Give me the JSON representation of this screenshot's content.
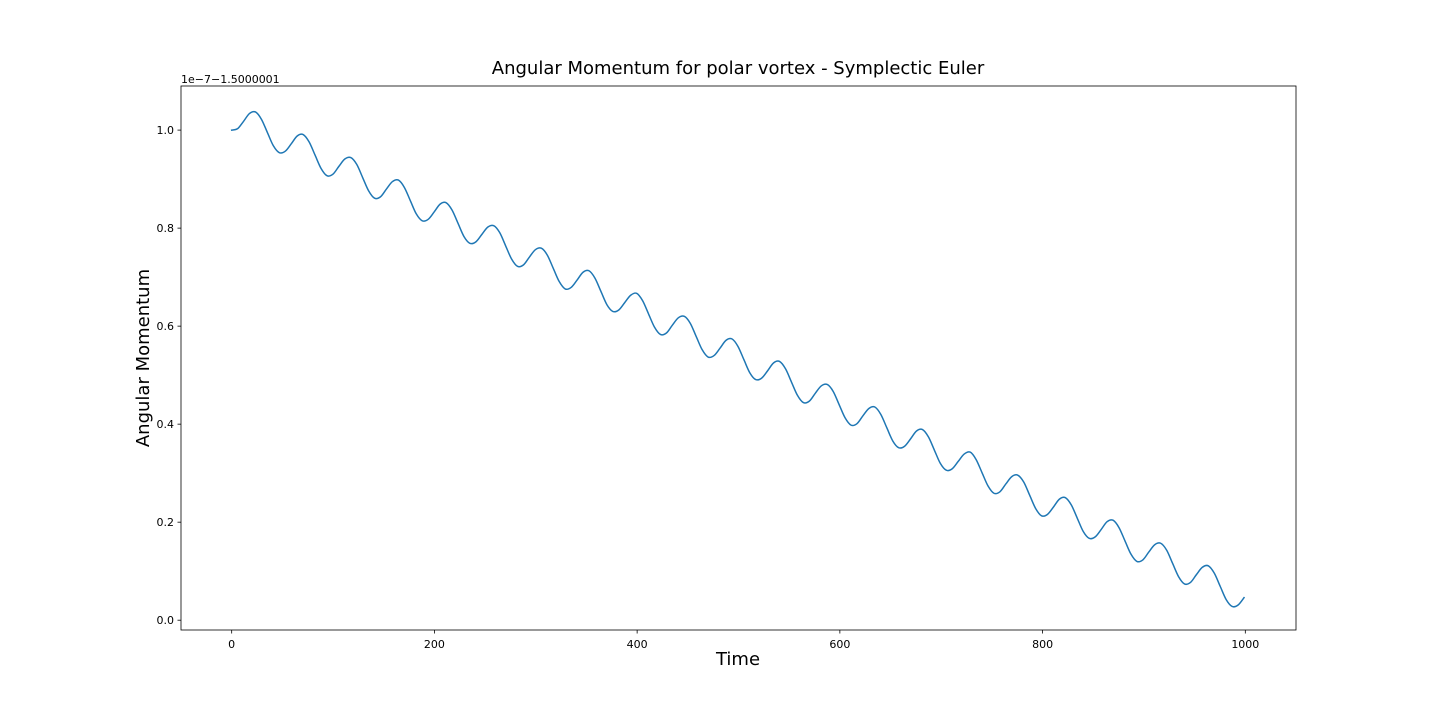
{
  "chart_data": {
    "type": "line",
    "title": "Angular Momentum for polar vortex - Symplectic Euler",
    "x_label": "Time",
    "y_label": "Angular Momentum",
    "y_offset_text": "1e−7−1.5000001",
    "xlim": [
      -50,
      1050
    ],
    "ylim": [
      -0.02,
      1.09
    ],
    "xticks": [
      0,
      200,
      400,
      600,
      800,
      1000
    ],
    "yticks": [
      {
        "value": 0,
        "label": "0.0"
      },
      {
        "value": 0.2,
        "label": "0.2"
      },
      {
        "value": 0.4,
        "label": "0.4"
      },
      {
        "value": 0.6,
        "label": "0.6"
      },
      {
        "value": 0.8,
        "label": "0.8"
      },
      {
        "value": 1.0,
        "label": "1.0"
      }
    ],
    "grid": false,
    "x": [
      0,
      5.875,
      11.75,
      17.625,
      23.5,
      29.375,
      35.25,
      41.125,
      47,
      52.875,
      58.75,
      64.625,
      70.5,
      76.375,
      82.25,
      88.125,
      94,
      99.875,
      105.75,
      111.625,
      117.5,
      123.375,
      129.25,
      135.125,
      141,
      146.875,
      152.75,
      158.625,
      164.5,
      170.375,
      176.25,
      182.125,
      188,
      193.875,
      199.75,
      205.625,
      211.5,
      217.375,
      223.25,
      229.125,
      235,
      240.875,
      246.75,
      252.625,
      258.5,
      264.375,
      270.25,
      276.125,
      282,
      287.875,
      293.75,
      299.625,
      305.5,
      311.375,
      317.25,
      323.125,
      329,
      334.875,
      340.75,
      346.625,
      352.5,
      358.375,
      364.25,
      370.125,
      376,
      381.875,
      387.75,
      393.625,
      399.5,
      405.375,
      411.25,
      417.125,
      423,
      428.875,
      434.75,
      440.625,
      446.5,
      452.375,
      458.25,
      464.125,
      470,
      475.875,
      481.75,
      487.625,
      493.5,
      499.375,
      505.25,
      511.125,
      517,
      522.875,
      528.75,
      534.625,
      540.5,
      546.375,
      552.25,
      558.125,
      564,
      569.875,
      575.75,
      581.625,
      587.5,
      593.375,
      599.25,
      605.125,
      611,
      616.875,
      622.75,
      628.625,
      634.5,
      640.375,
      646.25,
      652.125,
      658,
      663.875,
      669.75,
      675.625,
      681.5,
      687.375,
      693.25,
      699.125,
      705,
      710.875,
      716.75,
      722.625,
      728.5,
      734.375,
      740.25,
      746.125,
      752,
      757.875,
      763.75,
      769.625,
      775.5,
      781.375,
      787.25,
      793.125,
      799,
      804.875,
      810.75,
      816.625,
      822.5,
      828.375,
      834.25,
      840.125,
      846,
      851.875,
      857.75,
      863.625,
      869.5,
      875.375,
      881.25,
      887.125,
      893,
      898.875,
      904.75,
      910.625,
      916.5,
      922.375,
      928.25,
      934.125,
      940,
      945.875,
      951.75,
      957.625,
      963.5,
      969.375,
      975.25,
      981.125,
      987,
      992.875,
      998.75
    ],
    "series": [
      {
        "color": "#1f77b4",
        "values": [
          1.0,
          1.003,
          1.018,
          1.034,
          1.037,
          1.022,
          0.995,
          0.968,
          0.954,
          0.957,
          0.972,
          0.988,
          0.991,
          0.976,
          0.949,
          0.922,
          0.907,
          0.91,
          0.926,
          0.941,
          0.944,
          0.93,
          0.903,
          0.876,
          0.861,
          0.864,
          0.88,
          0.895,
          0.898,
          0.883,
          0.856,
          0.829,
          0.815,
          0.818,
          0.833,
          0.849,
          0.852,
          0.837,
          0.81,
          0.783,
          0.769,
          0.772,
          0.787,
          0.802,
          0.805,
          0.791,
          0.764,
          0.737,
          0.722,
          0.725,
          0.741,
          0.756,
          0.759,
          0.745,
          0.718,
          0.691,
          0.676,
          0.679,
          0.694,
          0.71,
          0.713,
          0.698,
          0.671,
          0.644,
          0.63,
          0.633,
          0.648,
          0.663,
          0.667,
          0.652,
          0.625,
          0.598,
          0.583,
          0.586,
          0.602,
          0.617,
          0.62,
          0.606,
          0.579,
          0.552,
          0.537,
          0.54,
          0.555,
          0.571,
          0.574,
          0.559,
          0.532,
          0.505,
          0.491,
          0.494,
          0.509,
          0.525,
          0.528,
          0.513,
          0.486,
          0.459,
          0.444,
          0.447,
          0.463,
          0.478,
          0.481,
          0.467,
          0.44,
          0.413,
          0.398,
          0.401,
          0.417,
          0.432,
          0.435,
          0.42,
          0.393,
          0.366,
          0.352,
          0.355,
          0.37,
          0.386,
          0.389,
          0.374,
          0.347,
          0.32,
          0.306,
          0.309,
          0.324,
          0.339,
          0.343,
          0.328,
          0.301,
          0.274,
          0.259,
          0.262,
          0.278,
          0.293,
          0.296,
          0.282,
          0.255,
          0.228,
          0.213,
          0.216,
          0.231,
          0.247,
          0.25,
          0.235,
          0.208,
          0.181,
          0.167,
          0.17,
          0.185,
          0.201,
          0.204,
          0.189,
          0.162,
          0.135,
          0.12,
          0.123,
          0.139,
          0.154,
          0.157,
          0.143,
          0.116,
          0.089,
          0.074,
          0.077,
          0.093,
          0.108,
          0.111,
          0.096,
          0.069,
          0.042,
          0.028,
          0.031,
          0.046
        ]
      }
    ]
  }
}
